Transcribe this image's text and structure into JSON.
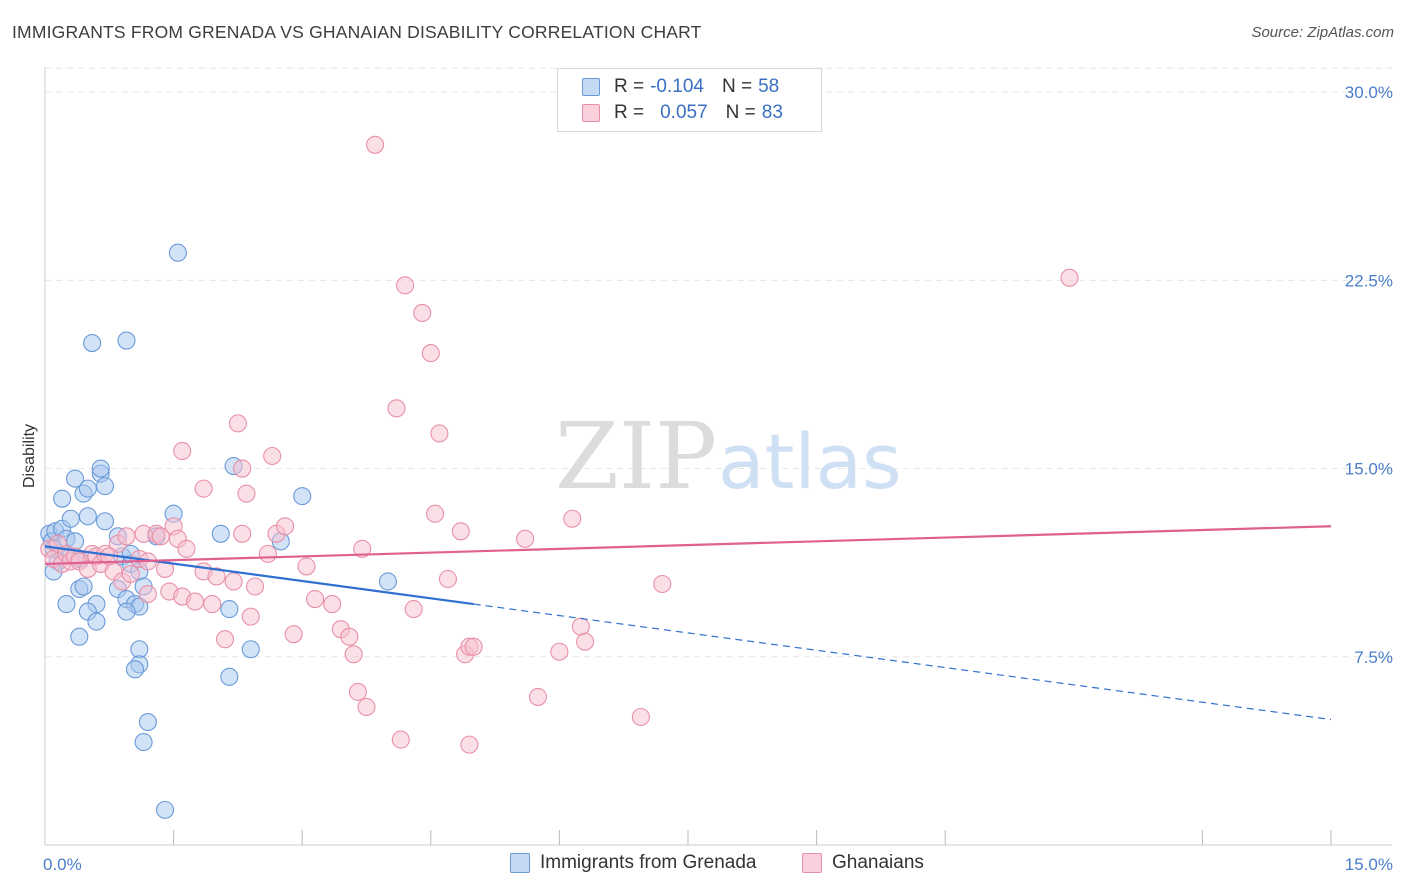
{
  "header": {
    "title": "IMMIGRANTS FROM GRENADA VS GHANAIAN DISABILITY CORRELATION CHART",
    "source": "Source: ZipAtlas.com"
  },
  "watermark": {
    "zip": "ZIP",
    "atlas": "atlas"
  },
  "legend": {
    "rows": [
      {
        "r_label": "R =",
        "r_value": "-0.104",
        "n_label": "N =",
        "n_value": "58",
        "color": "#a8c8f0",
        "stroke": "#6a9ad8"
      },
      {
        "r_label": "R =",
        "r_value": "0.057",
        "n_label": "N =",
        "n_value": "83",
        "color": "#f8c0d0",
        "stroke": "#e890a8"
      }
    ]
  },
  "bottom_legend": [
    {
      "label": "Immigrants from Grenada",
      "color": "#c4d9f4",
      "stroke": "#6a9ad8"
    },
    {
      "label": "Ghanaians",
      "color": "#f9d0dc",
      "stroke": "#e890a8"
    }
  ],
  "chart_data": {
    "type": "scatter",
    "ylabel": "Disability",
    "xlabel": "",
    "xlim": [
      0,
      15
    ],
    "ylim": [
      0,
      31
    ],
    "x_ticks": [
      {
        "value": 0,
        "label": "0.0%"
      },
      {
        "value": 15,
        "label": "15.0%"
      }
    ],
    "y_ticks": [
      {
        "value": 7.5,
        "label": "7.5%"
      },
      {
        "value": 15,
        "label": "15.0%"
      },
      {
        "value": 22.5,
        "label": "22.5%"
      },
      {
        "value": 30,
        "label": "30.0%"
      }
    ],
    "grid": true,
    "legend_position": "top-center",
    "series": [
      {
        "name": "Immigrants from Grenada",
        "color": "#a8c8f0",
        "stroke": "#6a9ad8",
        "trend_color": "#3070d0",
        "trend": {
          "x_start": 0,
          "y_start": 11.9,
          "x_solid_end": 5.0,
          "x_end": 15,
          "y_end": 5.0
        },
        "points": [
          [
            0.05,
            12.4
          ],
          [
            0.08,
            12.1
          ],
          [
            0.1,
            11.8
          ],
          [
            0.12,
            12.5
          ],
          [
            0.15,
            11.3
          ],
          [
            0.1,
            10.9
          ],
          [
            0.2,
            12.6
          ],
          [
            0.25,
            12.2
          ],
          [
            0.3,
            11.5
          ],
          [
            0.2,
            13.8
          ],
          [
            0.35,
            12.1
          ],
          [
            0.3,
            13.0
          ],
          [
            0.35,
            14.6
          ],
          [
            0.45,
            14.0
          ],
          [
            0.5,
            14.2
          ],
          [
            0.5,
            13.1
          ],
          [
            0.65,
            14.8
          ],
          [
            0.65,
            15.0
          ],
          [
            0.7,
            14.3
          ],
          [
            0.7,
            12.9
          ],
          [
            0.85,
            12.3
          ],
          [
            0.4,
            11.4
          ],
          [
            0.9,
            11.5
          ],
          [
            1.0,
            11.2
          ],
          [
            1.0,
            11.6
          ],
          [
            1.1,
            10.9
          ],
          [
            1.3,
            12.3
          ],
          [
            0.4,
            10.2
          ],
          [
            0.45,
            10.3
          ],
          [
            0.6,
            9.6
          ],
          [
            0.85,
            10.2
          ],
          [
            0.95,
            9.8
          ],
          [
            1.05,
            9.6
          ],
          [
            1.1,
            9.5
          ],
          [
            0.25,
            9.6
          ],
          [
            0.5,
            9.3
          ],
          [
            0.6,
            8.9
          ],
          [
            0.95,
            9.3
          ],
          [
            1.15,
            10.3
          ],
          [
            0.4,
            8.3
          ],
          [
            1.1,
            7.8
          ],
          [
            1.1,
            7.2
          ],
          [
            1.05,
            7.0
          ],
          [
            1.2,
            4.9
          ],
          [
            1.15,
            4.1
          ],
          [
            1.4,
            1.4
          ],
          [
            0.55,
            20.0
          ],
          [
            0.95,
            20.1
          ],
          [
            1.55,
            23.6
          ],
          [
            1.5,
            13.2
          ],
          [
            2.05,
            12.4
          ],
          [
            2.2,
            15.1
          ],
          [
            2.15,
            9.4
          ],
          [
            2.4,
            7.8
          ],
          [
            2.15,
            6.7
          ],
          [
            2.75,
            12.1
          ],
          [
            3.0,
            13.9
          ],
          [
            4.0,
            10.5
          ]
        ]
      },
      {
        "name": "Ghanaians",
        "color": "#f8c0d0",
        "stroke": "#e890a8",
        "trend_color": "#e06090",
        "trend": {
          "x_start": 0,
          "y_start": 11.2,
          "x_end": 15,
          "y_end": 12.7
        },
        "points": [
          [
            0.05,
            11.8
          ],
          [
            0.1,
            11.4
          ],
          [
            0.15,
            12.0
          ],
          [
            0.2,
            11.2
          ],
          [
            0.25,
            11.6
          ],
          [
            0.3,
            11.3
          ],
          [
            0.35,
            11.5
          ],
          [
            0.4,
            11.3
          ],
          [
            0.5,
            11.0
          ],
          [
            0.55,
            11.6
          ],
          [
            0.6,
            11.5
          ],
          [
            0.65,
            11.2
          ],
          [
            0.7,
            11.6
          ],
          [
            0.8,
            10.9
          ],
          [
            0.85,
            12.0
          ],
          [
            0.9,
            10.5
          ],
          [
            1.0,
            10.8
          ],
          [
            1.1,
            11.4
          ],
          [
            1.15,
            12.4
          ],
          [
            1.2,
            10.0
          ],
          [
            1.3,
            12.4
          ],
          [
            1.35,
            12.3
          ],
          [
            1.4,
            11.0
          ],
          [
            1.45,
            10.1
          ],
          [
            1.5,
            12.7
          ],
          [
            1.55,
            12.2
          ],
          [
            1.6,
            9.9
          ],
          [
            1.65,
            11.8
          ],
          [
            1.75,
            9.7
          ],
          [
            1.85,
            10.9
          ],
          [
            1.95,
            9.6
          ],
          [
            2.0,
            10.7
          ],
          [
            2.1,
            8.2
          ],
          [
            2.2,
            10.5
          ],
          [
            2.3,
            15.0
          ],
          [
            2.4,
            9.1
          ],
          [
            2.45,
            10.3
          ],
          [
            2.6,
            11.6
          ],
          [
            2.7,
            12.4
          ],
          [
            2.8,
            12.7
          ],
          [
            2.9,
            8.4
          ],
          [
            3.05,
            11.1
          ],
          [
            3.15,
            9.8
          ],
          [
            3.35,
            9.6
          ],
          [
            3.45,
            8.6
          ],
          [
            3.55,
            8.3
          ],
          [
            3.6,
            7.6
          ],
          [
            3.7,
            11.8
          ],
          [
            3.65,
            6.1
          ],
          [
            3.75,
            5.5
          ],
          [
            3.85,
            27.9
          ],
          [
            4.1,
            17.4
          ],
          [
            4.2,
            22.3
          ],
          [
            4.15,
            4.2
          ],
          [
            4.3,
            9.4
          ],
          [
            4.4,
            21.2
          ],
          [
            4.5,
            19.6
          ],
          [
            4.55,
            13.2
          ],
          [
            4.6,
            16.4
          ],
          [
            4.7,
            10.6
          ],
          [
            4.85,
            12.5
          ],
          [
            4.9,
            7.6
          ],
          [
            4.95,
            7.9
          ],
          [
            5.0,
            7.9
          ],
          [
            4.95,
            4.0
          ],
          [
            5.6,
            12.2
          ],
          [
            5.75,
            5.9
          ],
          [
            6.0,
            7.7
          ],
          [
            6.15,
            13.0
          ],
          [
            6.25,
            8.7
          ],
          [
            6.3,
            8.1
          ],
          [
            6.95,
            5.1
          ],
          [
            7.2,
            10.4
          ],
          [
            11.95,
            22.6
          ],
          [
            1.6,
            15.7
          ],
          [
            1.85,
            14.2
          ],
          [
            2.25,
            16.8
          ],
          [
            2.65,
            15.5
          ],
          [
            2.3,
            12.4
          ],
          [
            2.35,
            14.0
          ],
          [
            1.2,
            11.3
          ],
          [
            0.75,
            11.5
          ],
          [
            0.95,
            12.3
          ]
        ]
      }
    ]
  }
}
